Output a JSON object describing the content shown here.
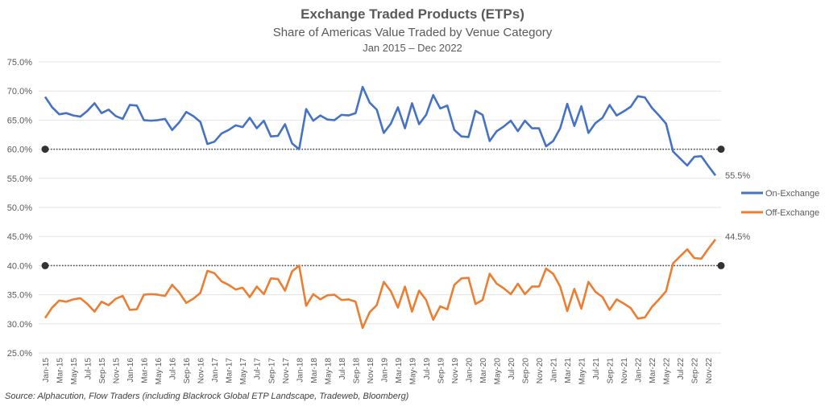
{
  "chart_data": {
    "type": "line",
    "title": "Exchange Traded Products (ETPs)",
    "subtitle": "Share of Americas Value Traded by Venue Category",
    "date_range": "Jan 2015 – Dec 2022",
    "ylim": [
      25,
      75
    ],
    "y_ticks": [
      "75.0%",
      "70.0%",
      "65.0%",
      "60.0%",
      "55.0%",
      "50.0%",
      "45.0%",
      "40.0%",
      "35.0%",
      "30.0%",
      "25.0%"
    ],
    "y_tick_values": [
      75,
      70,
      65,
      60,
      55,
      50,
      45,
      40,
      35,
      30,
      25
    ],
    "grid": true,
    "legend": "right",
    "x_tick_labels": [
      "Jan-15",
      "Mar-15",
      "May-15",
      "Jul-15",
      "Sep-15",
      "Nov-15",
      "Jan-16",
      "Mar-16",
      "May-16",
      "Jul-16",
      "Sep-16",
      "Nov-16",
      "Jan-17",
      "Mar-17",
      "May-17",
      "Jul-17",
      "Sep-17",
      "Nov-17",
      "Jan-18",
      "Mar-18",
      "May-18",
      "Jul-18",
      "Sep-18",
      "Nov-18",
      "Jan-19",
      "Mar-19",
      "May-19",
      "Jul-19",
      "Sep-19",
      "Nov-19",
      "Jan-20",
      "Mar-20",
      "May-20",
      "Jul-20",
      "Sep-20",
      "Nov-20",
      "Jan-21",
      "Mar-21",
      "May-21",
      "Jul-21",
      "Sep-21",
      "Nov-21",
      "Jan-22",
      "Mar-22",
      "May-22",
      "Jul-22",
      "Sep-22",
      "Nov-22"
    ],
    "reference_lines": [
      60,
      40
    ],
    "series": [
      {
        "name": "On-Exchange",
        "color": "#4472C4",
        "end_label": "55.5%",
        "values": [
          69.0,
          67.2,
          66.0,
          66.2,
          65.8,
          65.6,
          66.6,
          67.9,
          66.2,
          66.8,
          65.7,
          65.2,
          67.6,
          67.5,
          65.0,
          64.9,
          65.0,
          65.2,
          63.3,
          64.6,
          66.4,
          65.7,
          64.7,
          60.9,
          61.3,
          62.7,
          63.3,
          64.1,
          63.8,
          65.4,
          63.6,
          64.9,
          62.2,
          62.3,
          64.3,
          61.0,
          60.0,
          66.9,
          64.9,
          65.8,
          65.1,
          65.0,
          65.9,
          65.8,
          66.2,
          70.7,
          68.0,
          66.8,
          62.8,
          64.4,
          67.2,
          63.6,
          67.9,
          64.3,
          65.9,
          69.3,
          67.0,
          67.5,
          63.3,
          62.2,
          62.1,
          66.6,
          65.9,
          61.4,
          63.1,
          63.9,
          64.9,
          63.1,
          64.9,
          63.6,
          63.6,
          60.5,
          61.4,
          63.6,
          67.8,
          64.0,
          67.4,
          62.8,
          64.5,
          65.4,
          67.6,
          65.8,
          66.5,
          67.3,
          69.1,
          68.9,
          67.1,
          65.8,
          64.4,
          59.6,
          58.4,
          57.2,
          58.7,
          58.8,
          57.1,
          55.5
        ]
      },
      {
        "name": "Off-Exchange",
        "color": "#ED7D31",
        "end_label": "44.5%",
        "values": [
          31.0,
          32.8,
          34.0,
          33.8,
          34.2,
          34.4,
          33.4,
          32.1,
          33.8,
          33.2,
          34.3,
          34.8,
          32.4,
          32.5,
          35.0,
          35.1,
          35.0,
          34.8,
          36.7,
          35.4,
          33.6,
          34.3,
          35.3,
          39.1,
          38.7,
          37.3,
          36.7,
          35.9,
          36.2,
          34.6,
          36.4,
          35.1,
          37.8,
          37.7,
          35.7,
          39.0,
          40.0,
          33.1,
          35.1,
          34.2,
          34.9,
          35.0,
          34.1,
          34.2,
          33.8,
          29.3,
          32.0,
          33.2,
          37.2,
          35.6,
          32.8,
          36.4,
          32.1,
          35.7,
          34.1,
          30.7,
          33.0,
          32.5,
          36.7,
          37.8,
          37.9,
          33.4,
          34.1,
          38.6,
          36.9,
          36.1,
          35.1,
          36.9,
          35.1,
          36.4,
          36.4,
          39.5,
          38.6,
          36.4,
          32.2,
          36.0,
          32.6,
          37.2,
          35.5,
          34.6,
          32.4,
          34.2,
          33.5,
          32.7,
          30.9,
          31.1,
          32.9,
          34.2,
          35.6,
          40.4,
          41.6,
          42.8,
          41.3,
          41.2,
          42.9,
          44.5
        ]
      }
    ]
  },
  "source": "Source: Alphacution, Flow Traders (including Blackrock Global ETP Landscape, Tradeweb, Bloomberg)"
}
